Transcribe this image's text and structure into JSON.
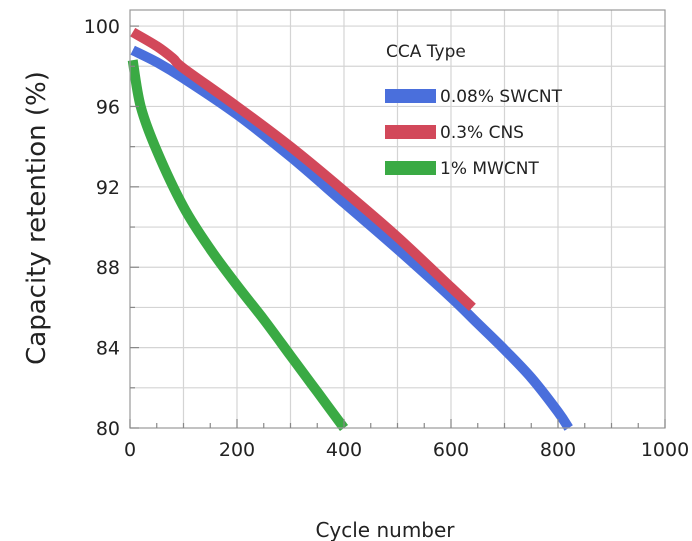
{
  "chart_data": {
    "type": "line",
    "xlabel": "Cycle number",
    "ylabel": "Capacity retention (%)",
    "xlim": [
      0,
      1000
    ],
    "ylim": [
      80,
      100.8
    ],
    "xticks": [
      0,
      200,
      400,
      600,
      800,
      1000
    ],
    "yticks": [
      80,
      84,
      88,
      92,
      96,
      100
    ],
    "grid": true,
    "legend": {
      "title": "CCA Type",
      "placement": "top-right"
    },
    "series": [
      {
        "name": "0.08% SWCNT",
        "color": "#4a6fdc",
        "x": [
          5,
          50,
          100,
          200,
          300,
          400,
          500,
          600,
          650,
          700,
          750,
          800,
          820
        ],
        "y": [
          98.8,
          98.2,
          97.4,
          95.6,
          93.5,
          91.2,
          88.9,
          86.5,
          85.2,
          83.9,
          82.5,
          80.8,
          80.0
        ]
      },
      {
        "name": "0.3% CNS",
        "color": "#d2485a",
        "x": [
          5,
          50,
          80,
          100,
          200,
          300,
          400,
          500,
          600,
          640
        ],
        "y": [
          99.7,
          99.0,
          98.4,
          97.9,
          96.0,
          94.0,
          91.8,
          89.5,
          87.0,
          86.0
        ]
      },
      {
        "name": "1% MWCNT",
        "color": "#3aaa44",
        "x": [
          5,
          20,
          50,
          100,
          150,
          200,
          250,
          300,
          350,
          400
        ],
        "y": [
          98.3,
          96.0,
          93.8,
          91.0,
          88.9,
          87.1,
          85.4,
          83.6,
          81.8,
          80.0
        ]
      }
    ]
  }
}
